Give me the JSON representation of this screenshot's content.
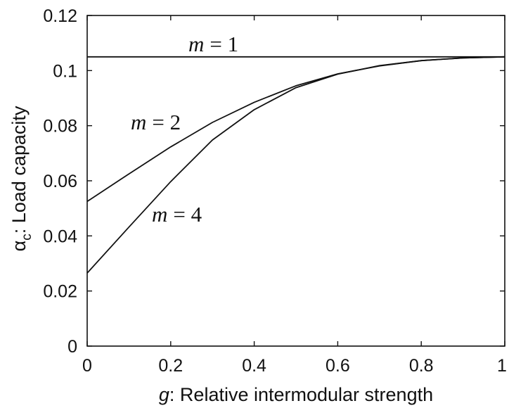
{
  "chart_data": {
    "type": "line",
    "xlabel_var": "g",
    "xlabel_text": ": Relative intermodular strength",
    "ylabel_var": "α",
    "ylabel_sub": "c",
    "ylabel_text": ": Load capacity",
    "xlim": [
      0,
      1
    ],
    "ylim": [
      0,
      0.12
    ],
    "xticks": [
      {
        "v": 0,
        "label": "0"
      },
      {
        "v": 0.2,
        "label": "0.2"
      },
      {
        "v": 0.4,
        "label": "0.4"
      },
      {
        "v": 0.6,
        "label": "0.6"
      },
      {
        "v": 0.8,
        "label": "0.8"
      },
      {
        "v": 1,
        "label": "1"
      }
    ],
    "yticks": [
      {
        "v": 0,
        "label": "0"
      },
      {
        "v": 0.02,
        "label": "0.02"
      },
      {
        "v": 0.04,
        "label": "0.04"
      },
      {
        "v": 0.06,
        "label": "0.06"
      },
      {
        "v": 0.08,
        "label": "0.08"
      },
      {
        "v": 0.1,
        "label": "0.1"
      },
      {
        "v": 0.12,
        "label": "0.12"
      }
    ],
    "x": [
      0,
      0.1,
      0.2,
      0.3,
      0.4,
      0.5,
      0.6,
      0.7,
      0.8,
      0.9,
      1.0
    ],
    "series": [
      {
        "name": "m = 1",
        "var": "m",
        "rhs": "= 1",
        "values": [
          0.105,
          0.105,
          0.105,
          0.105,
          0.105,
          0.105,
          0.105,
          0.105,
          0.105,
          0.105,
          0.105
        ]
      },
      {
        "name": "m = 2",
        "var": "m",
        "rhs": "= 2",
        "values": [
          0.0525,
          0.0625,
          0.0723,
          0.0812,
          0.0885,
          0.0945,
          0.0988,
          0.1017,
          0.1036,
          0.1046,
          0.105
        ]
      },
      {
        "name": "m = 4",
        "var": "m",
        "rhs": "= 4",
        "values": [
          0.0265,
          0.0432,
          0.0597,
          0.0748,
          0.0858,
          0.0938,
          0.0987,
          0.1018,
          0.1036,
          0.1046,
          0.105
        ]
      }
    ],
    "grid": false,
    "box": true,
    "color": "#111111"
  }
}
